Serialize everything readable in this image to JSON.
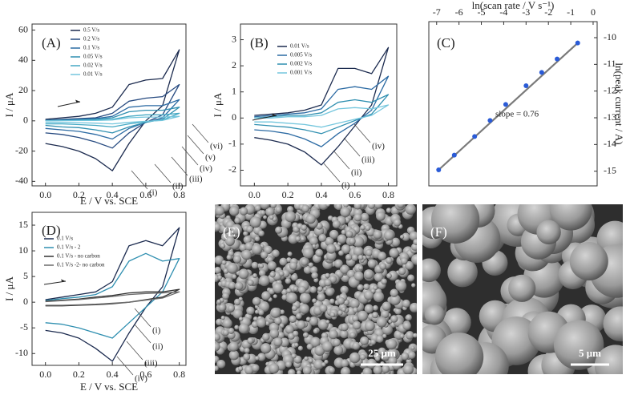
{
  "chart_data": [
    {
      "type": "line",
      "panel_label": "(A)",
      "x": [
        0,
        0.1,
        0.2,
        0.3,
        0.4,
        0.5,
        0.6,
        0.7,
        0.8,
        0.7,
        0.6,
        0.5,
        0.4,
        0.3,
        0.2,
        0.1,
        0
      ],
      "series": [
        {
          "name": "0.5 V/s",
          "color": "#1c2b4f",
          "values": [
            1,
            2,
            3,
            5,
            9,
            24,
            27,
            28,
            47,
            10,
            0,
            -15,
            -33,
            -25,
            -20,
            -17,
            -15
          ]
        },
        {
          "name": "0.2 V/s",
          "color": "#264a80",
          "values": [
            0.5,
            1,
            1.5,
            2,
            5,
            13,
            15,
            16,
            24,
            4,
            -1,
            -8,
            -18,
            -14,
            -11,
            -9,
            -8
          ]
        },
        {
          "name": "0.1 V/s",
          "color": "#2b6aa3",
          "values": [
            0.3,
            0.6,
            1,
            1.5,
            3,
            9,
            10,
            10,
            14,
            2,
            -1,
            -5,
            -12,
            -9,
            -7,
            -6,
            -5
          ]
        },
        {
          "name": "0.05 V/s",
          "color": "#2f8fb0",
          "values": [
            0.2,
            0.4,
            0.6,
            1,
            2,
            6,
            7,
            7,
            9,
            1,
            -1,
            -4,
            -8,
            -6,
            -4.5,
            -4,
            -3
          ]
        },
        {
          "name": "0.02 V/s",
          "color": "#45a9c4",
          "values": [
            0.1,
            0.2,
            0.4,
            0.6,
            1,
            3,
            4,
            4,
            5,
            0.5,
            -0.5,
            -2,
            -4,
            -3,
            -2.5,
            -2,
            -2
          ]
        },
        {
          "name": "0.01 V/s",
          "color": "#74c6dd",
          "values": [
            0,
            0.1,
            0.2,
            0.3,
            0.6,
            2,
            2.5,
            2.5,
            3,
            0.3,
            -0.3,
            -1,
            -2,
            -1.5,
            -1.2,
            -1,
            -1
          ]
        }
      ],
      "xlim": [
        -0.08,
        0.84
      ],
      "ylim": [
        -43,
        64
      ],
      "xticks": [
        {
          "value": 0,
          "label": "0.0"
        },
        0.2,
        0.4,
        0.6,
        0.8
      ],
      "yticks": [
        -40,
        -20,
        0,
        20,
        40,
        60
      ],
      "xlabel": "E / V vs. SCE",
      "ylabel": "I / μA",
      "annotations": [
        "(vi)",
        "(v)",
        "(iv)",
        "(iii)",
        "(ii)",
        "(i)"
      ]
    },
    {
      "type": "line",
      "panel_label": "(B)",
      "x": [
        0,
        0.1,
        0.2,
        0.3,
        0.4,
        0.5,
        0.6,
        0.7,
        0.8,
        0.7,
        0.6,
        0.5,
        0.4,
        0.3,
        0.2,
        0.1,
        0
      ],
      "series": [
        {
          "name": "0.01 V/s",
          "color": "#1c2b4f",
          "values": [
            0.1,
            0.15,
            0.2,
            0.3,
            0.5,
            1.9,
            1.9,
            1.7,
            2.7,
            0.5,
            -0.3,
            -1.1,
            -1.8,
            -1.3,
            -1.0,
            -0.85,
            -0.75
          ]
        },
        {
          "name": "0.005 V/s",
          "color": "#2b6aa3",
          "values": [
            0.05,
            0.1,
            0.15,
            0.2,
            0.35,
            1.1,
            1.2,
            1.1,
            1.6,
            0.3,
            -0.2,
            -0.6,
            -1.1,
            -0.8,
            -0.6,
            -0.5,
            -0.45
          ]
        },
        {
          "name": "0.002 V/s",
          "color": "#2f8fb0",
          "values": [
            0,
            0.05,
            0.1,
            0.1,
            0.2,
            0.6,
            0.7,
            0.6,
            0.9,
            0.15,
            -0.1,
            -0.35,
            -0.6,
            -0.45,
            -0.35,
            -0.3,
            -0.25
          ]
        },
        {
          "name": "0.001 V/s",
          "color": "#74c6dd",
          "values": [
            0,
            0,
            0.05,
            0.05,
            0.1,
            0.35,
            0.4,
            0.35,
            0.5,
            0.1,
            -0.05,
            -0.2,
            -0.35,
            -0.25,
            -0.2,
            -0.15,
            -0.15
          ]
        }
      ],
      "xlim": [
        -0.083,
        0.85
      ],
      "ylim": [
        -2.6,
        3.6
      ],
      "xticks": [
        {
          "value": 0,
          "label": "0.0"
        },
        0.2,
        0.4,
        0.6,
        0.8
      ],
      "yticks": [
        -2,
        -1,
        0,
        1,
        2,
        3
      ],
      "ylabel": "I / μA",
      "annotations": [
        "(iv)",
        "(iii)",
        "(ii)",
        "(i)"
      ]
    },
    {
      "type": "scatter",
      "panel_label": "(C)",
      "x": [
        -6.91,
        -6.21,
        -5.3,
        -4.61,
        -3.91,
        -3.0,
        -2.3,
        -1.61,
        -0.69
      ],
      "values": [
        -14.95,
        -14.4,
        -13.7,
        -13.1,
        -12.5,
        -11.8,
        -11.3,
        -10.8,
        -10.2
      ],
      "color": "#2a5bd7",
      "fit": {
        "x": [
          -6.91,
          -0.69
        ],
        "values": [
          -14.95,
          -10.2
        ],
        "color": "#7a7a7a"
      },
      "xlim": [
        -7.35,
        0.18
      ],
      "ylim": [
        -15.55,
        -9.4
      ],
      "xticks": [
        -7,
        -6,
        -5,
        -4,
        -3,
        -2,
        -1,
        0
      ],
      "yticks": [
        -15,
        -14,
        -13,
        -12,
        -11,
        -10
      ],
      "xlabel": "ln(scan rate / V s⁻¹)",
      "ylabel": "ln(peak current / A)",
      "annotations": [
        "slope = 0.76"
      ]
    },
    {
      "type": "line",
      "panel_label": "(D)",
      "x": [
        0,
        0.1,
        0.2,
        0.3,
        0.4,
        0.5,
        0.6,
        0.7,
        0.8,
        0.7,
        0.6,
        0.5,
        0.4,
        0.3,
        0.2,
        0.1,
        0
      ],
      "series": [
        {
          "name": "0.1 V/s",
          "color": "#1c2b4f",
          "values": [
            0.5,
            1,
            1.5,
            2,
            4,
            11,
            12,
            11,
            14.5,
            3,
            -1,
            -6,
            -11.5,
            -9,
            -7,
            -6,
            -5.5
          ]
        },
        {
          "name": "0.1 V/s - 2",
          "color": "#2f8fb0",
          "values": [
            0.3,
            0.7,
            1,
            1.5,
            3,
            8,
            9.5,
            8,
            8.5,
            2,
            -1,
            -4,
            -7,
            -6,
            -5,
            -4.3,
            -4
          ]
        },
        {
          "name": "0.1 V/s - no carbon",
          "color": "#333333",
          "values": [
            0.2,
            0.4,
            0.6,
            1,
            1.3,
            1.8,
            2,
            2,
            2.5,
            1,
            0.5,
            0,
            -0.3,
            -0.5,
            -0.6,
            -0.7,
            -0.7
          ]
        },
        {
          "name": "0.1 V/s -2- no carbon",
          "color": "#6b6b6b",
          "values": [
            0.1,
            0.3,
            0.5,
            0.8,
            1.1,
            1.5,
            1.7,
            1.8,
            2,
            0.8,
            0.4,
            0,
            -0.2,
            -0.4,
            -0.5,
            -0.6,
            -0.6
          ]
        }
      ],
      "xlim": [
        -0.08,
        0.84
      ],
      "ylim": [
        -12.3,
        17.5
      ],
      "xticks": [
        {
          "value": 0,
          "label": "0.0"
        },
        0.2,
        0.4,
        0.6,
        0.8
      ],
      "yticks": [
        -10,
        -5,
        0,
        5,
        10,
        15
      ],
      "xlabel": "E / V vs. SCE",
      "ylabel": "I / μA",
      "annotations": [
        "(i)",
        "(ii)",
        "(iii)",
        "(iv)"
      ]
    }
  ],
  "images": [
    {
      "panel_label": "(E)",
      "scale_bar": "25 μm"
    },
    {
      "panel_label": "(F)",
      "scale_bar": "5 μm"
    }
  ]
}
